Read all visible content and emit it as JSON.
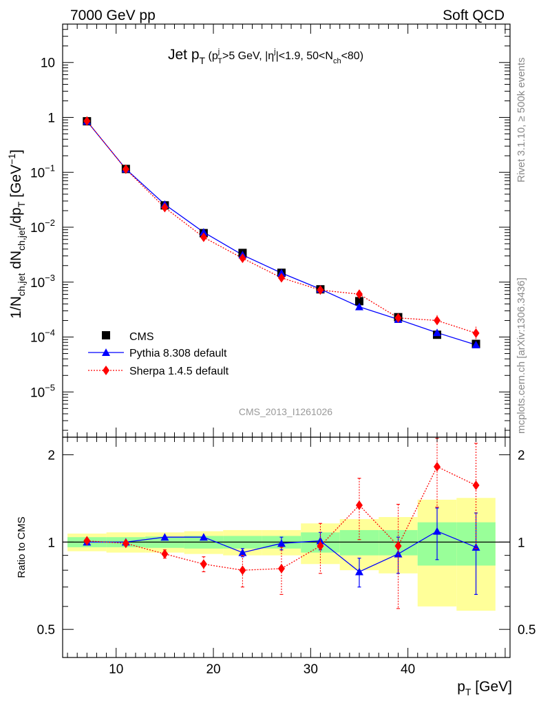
{
  "header": {
    "left": "7000 GeV pp",
    "right": "Soft QCD"
  },
  "side": {
    "rivet": "Rivet 3.1.10, ≥ 500k events",
    "mcplots": "mcplots.cern.ch [arXiv:1306.3436]"
  },
  "chart_data": {
    "type": "line",
    "title": "Jet pT (pTj>5 GeV, |ηj|<1.9, 50<Nch<80)",
    "title_main": "Jet p",
    "title_main_sub": "T",
    "title_cond_open": "(p",
    "title_cond_sub": "T",
    "title_cond_sup": "j",
    "title_cond_mid": ">5 GeV, |η",
    "title_cond_eta_sup": "j",
    "title_cond_end": "|<1.9, 50<N",
    "title_cond_nch_sub": "ch",
    "title_cond_close": "<80)",
    "analysis_id": "CMS_2013_I1261026",
    "xlabel": "p",
    "xlabel_sub": "T",
    "xlabel_unit": "[GeV]",
    "ylabel_text": "1/N_ch,jet dN_ch,jet/dp_T [GeV^-1]",
    "ratio_ylabel": "Ratio to CMS",
    "xlim": [
      4.5,
      50.5
    ],
    "ylim_main": [
      1.5e-06,
      50
    ],
    "ylim_ratio": [
      0.4,
      2.3
    ],
    "x_ticks": [
      10,
      20,
      30,
      40
    ],
    "main_y_ticks": [
      {
        "value": 10,
        "base": "10",
        "exp": ""
      },
      {
        "value": 1,
        "base": "1",
        "exp": ""
      },
      {
        "value": 0.1,
        "base": "10",
        "exp": "−1"
      },
      {
        "value": 0.01,
        "base": "10",
        "exp": "−2"
      },
      {
        "value": 0.001,
        "base": "10",
        "exp": "−3"
      },
      {
        "value": 0.0001,
        "base": "10",
        "exp": "−4"
      },
      {
        "value": 1e-05,
        "base": "10",
        "exp": "−5"
      }
    ],
    "ratio_y_ticks": [
      {
        "value": 2,
        "label": "2"
      },
      {
        "value": 1,
        "label": "1"
      },
      {
        "value": 0.5,
        "label": "0.5"
      }
    ],
    "bins": [
      {
        "x": 7,
        "lo": 5,
        "hi": 9,
        "cms": 0.85,
        "err_in": 0.04,
        "err_out": 0.07
      },
      {
        "x": 11,
        "lo": 9,
        "hi": 13,
        "cms": 0.115,
        "err_in": 0.04,
        "err_out": 0.08
      },
      {
        "x": 15,
        "lo": 13,
        "hi": 17,
        "cms": 0.025,
        "err_in": 0.045,
        "err_out": 0.08
      },
      {
        "x": 19,
        "lo": 17,
        "hi": 21,
        "cms": 0.0078,
        "err_in": 0.05,
        "err_out": 0.09
      },
      {
        "x": 23,
        "lo": 21,
        "hi": 25,
        "cms": 0.0034,
        "err_in": 0.05,
        "err_out": 0.1
      },
      {
        "x": 27,
        "lo": 25,
        "hi": 29,
        "cms": 0.00148,
        "err_in": 0.05,
        "err_out": 0.1
      },
      {
        "x": 31,
        "lo": 29,
        "hi": 33,
        "cms": 0.00074,
        "err_in": 0.08,
        "err_out": 0.16
      },
      {
        "x": 35,
        "lo": 33,
        "hi": 37,
        "cms": 0.00045,
        "err_in": 0.1,
        "err_out": 0.2
      },
      {
        "x": 39,
        "lo": 37,
        "hi": 41,
        "cms": 0.00023,
        "err_in": 0.1,
        "err_out": 0.22
      },
      {
        "x": 43,
        "lo": 41,
        "hi": 45,
        "cms": 0.00011,
        "err_in": 0.17,
        "err_out": 0.4
      },
      {
        "x": 47,
        "lo": 45,
        "hi": 49,
        "cms": 7.5e-05,
        "err_in": 0.17,
        "err_out": 0.42
      }
    ],
    "series": [
      {
        "name": "CMS",
        "color": "#000000",
        "marker": "square",
        "x": [
          7,
          11,
          15,
          19,
          23,
          27,
          31,
          35,
          39,
          43,
          47
        ],
        "y": [
          0.85,
          0.115,
          0.025,
          0.0078,
          0.0034,
          0.00148,
          0.00074,
          0.00045,
          0.00023,
          0.00011,
          7.5e-05
        ]
      },
      {
        "name": "Pythia 8.308 default",
        "color": "#0000ff",
        "marker": "triangle",
        "line": "solid",
        "x": [
          7,
          11,
          15,
          19,
          23,
          27,
          31,
          35,
          39,
          43,
          47
        ],
        "ratio": [
          1.0,
          1.0,
          1.04,
          1.04,
          0.92,
          0.99,
          1.01,
          0.79,
          0.91,
          1.09,
          0.96
        ],
        "ratio_err": [
          0.01,
          0.01,
          0.015,
          0.02,
          0.03,
          0.05,
          0.07,
          0.09,
          0.13,
          0.22,
          0.3
        ]
      },
      {
        "name": "Sherpa 1.4.5 default",
        "color": "#ff0000",
        "marker": "diamond",
        "line": "dotted",
        "x": [
          7,
          11,
          15,
          19,
          23,
          27,
          31,
          35,
          39,
          43,
          47
        ],
        "ratio": [
          1.01,
          0.99,
          0.91,
          0.84,
          0.8,
          0.81,
          0.97,
          1.34,
          0.97,
          1.82,
          1.57
        ],
        "ratio_err": [
          0.015,
          0.02,
          0.03,
          0.05,
          0.1,
          0.15,
          0.19,
          0.32,
          0.38,
          0.5,
          0.62
        ]
      }
    ]
  }
}
